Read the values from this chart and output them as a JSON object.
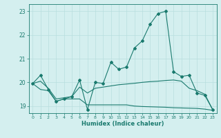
{
  "xlabel": "Humidex (Indice chaleur)",
  "background_color": "#d4efef",
  "grid_color": "#b8dede",
  "line_color": "#1a7a6e",
  "xlim": [
    -0.5,
    23.5
  ],
  "ylim": [
    18.7,
    23.3
  ],
  "yticks": [
    19,
    20,
    21,
    22,
    23
  ],
  "xticks": [
    0,
    1,
    2,
    3,
    4,
    5,
    6,
    7,
    8,
    9,
    10,
    11,
    12,
    13,
    14,
    15,
    16,
    17,
    18,
    19,
    20,
    21,
    22,
    23
  ],
  "series": [
    {
      "x": [
        0,
        1,
        2,
        3,
        4,
        5,
        6,
        7,
        8,
        9,
        10,
        11,
        12,
        13,
        14,
        15,
        16,
        17,
        18,
        19,
        20,
        21,
        22,
        23
      ],
      "y": [
        19.95,
        20.3,
        19.7,
        19.2,
        19.3,
        19.4,
        20.1,
        18.85,
        20.0,
        19.95,
        20.85,
        20.55,
        20.65,
        21.45,
        21.75,
        22.45,
        22.9,
        23.0,
        20.45,
        20.25,
        20.3,
        19.55,
        19.45,
        18.85
      ],
      "marker": "D",
      "markersize": 2.0,
      "linewidth": 0.8
    },
    {
      "x": [
        0,
        1,
        2,
        3,
        4,
        5,
        6,
        7,
        8,
        9,
        10,
        11,
        12,
        13,
        14,
        15,
        16,
        17,
        18,
        19,
        20,
        21,
        22,
        23
      ],
      "y": [
        19.95,
        20.05,
        19.75,
        19.3,
        19.35,
        19.4,
        19.8,
        19.55,
        19.75,
        19.8,
        19.85,
        19.9,
        19.93,
        19.96,
        20.0,
        20.03,
        20.05,
        20.08,
        20.1,
        20.05,
        19.75,
        19.65,
        19.5,
        18.85
      ],
      "marker": null,
      "linewidth": 0.8
    },
    {
      "x": [
        0,
        1,
        2,
        3,
        4,
        5,
        6,
        7,
        8,
        9,
        10,
        11,
        12,
        13,
        14,
        15,
        16,
        17,
        18,
        19,
        20,
        21,
        22,
        23
      ],
      "y": [
        19.95,
        19.7,
        19.65,
        19.2,
        19.3,
        19.3,
        19.3,
        19.05,
        19.05,
        19.05,
        19.05,
        19.05,
        19.05,
        19.0,
        18.98,
        18.97,
        18.96,
        18.95,
        18.93,
        18.92,
        18.91,
        18.9,
        18.87,
        18.82
      ],
      "marker": null,
      "linewidth": 0.8
    }
  ]
}
